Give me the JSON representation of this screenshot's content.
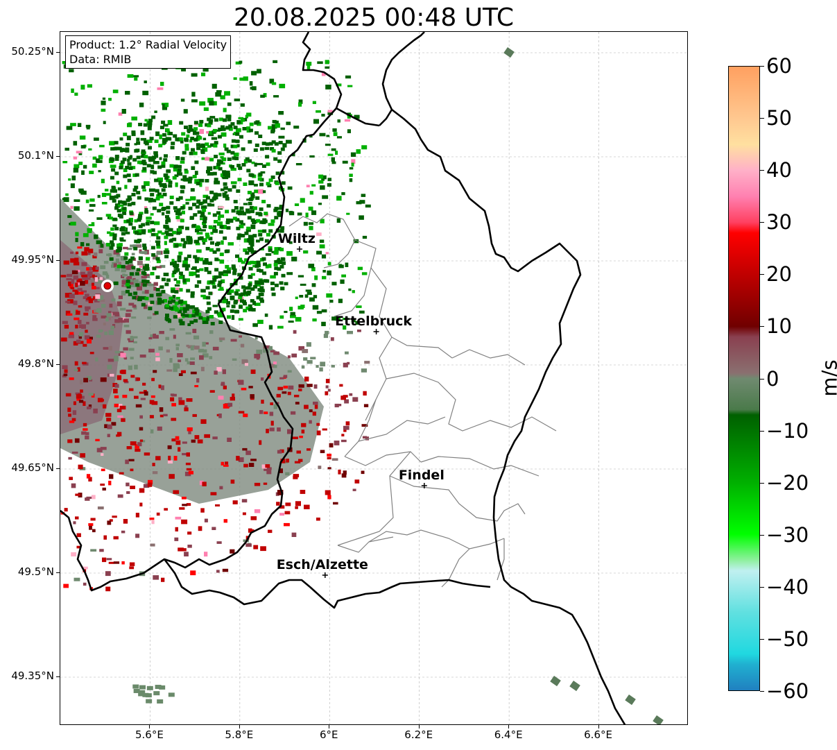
{
  "title": "20.08.2025 00:48 UTC",
  "info": {
    "product": "Product: 1.2° Radial Velocity",
    "source": "Data: RMIB"
  },
  "map": {
    "lon_range": [
      5.4,
      6.8
    ],
    "lat_range": [
      49.28,
      50.28
    ],
    "lat_ticks": [
      {
        "value": 50.25,
        "label": "50.25°N"
      },
      {
        "value": 50.1,
        "label": "50.1°N"
      },
      {
        "value": 49.95,
        "label": "49.95°N"
      },
      {
        "value": 49.8,
        "label": "49.8°N"
      },
      {
        "value": 49.65,
        "label": "49.65°N"
      },
      {
        "value": 49.5,
        "label": "49.5°N"
      },
      {
        "value": 49.35,
        "label": "49.35°N"
      }
    ],
    "lon_ticks": [
      {
        "value": 5.6,
        "label": "5.6°E"
      },
      {
        "value": 5.8,
        "label": "5.8°E"
      },
      {
        "value": 6.0,
        "label": "6°E"
      },
      {
        "value": 6.2,
        "label": "6.2°E"
      },
      {
        "value": 6.4,
        "label": "6.4°E"
      },
      {
        "value": 6.6,
        "label": "6.6°E"
      }
    ],
    "cities": [
      {
        "name": "Wiltz",
        "lon": 5.933,
        "lat": 49.967
      },
      {
        "name": "Ettelbruck",
        "lon": 6.104,
        "lat": 49.848
      },
      {
        "name": "Findel",
        "lon": 6.211,
        "lat": 49.626
      },
      {
        "name": "Esch/Alzette",
        "lon": 5.99,
        "lat": 49.497
      }
    ],
    "radar_site": {
      "lon": 5.505,
      "lat": 49.914
    },
    "colors": {
      "border": "#000000",
      "cantons": "#808080",
      "grid": "#b0b0b0",
      "radar_marker": "#e00000"
    }
  },
  "colorbar": {
    "min": -60,
    "max": 60,
    "unit": "m/s",
    "tick_labels": [
      "60",
      "50",
      "40",
      "30",
      "20",
      "10",
      "0",
      "−10",
      "−20",
      "−30",
      "−40",
      "−50",
      "−60"
    ],
    "tick_values": [
      60,
      50,
      40,
      30,
      20,
      10,
      0,
      -10,
      -20,
      -30,
      -40,
      -50,
      -60
    ],
    "stops": [
      {
        "v": 60,
        "c": "#ffa060"
      },
      {
        "v": 50,
        "c": "#ffc890"
      },
      {
        "v": 45,
        "c": "#ffe0a0"
      },
      {
        "v": 40,
        "c": "#ffb0c8"
      },
      {
        "v": 35,
        "c": "#ff80b0"
      },
      {
        "v": 30,
        "c": "#ff4060"
      },
      {
        "v": 28,
        "c": "#ff0000"
      },
      {
        "v": 20,
        "c": "#c00000"
      },
      {
        "v": 10,
        "c": "#700000"
      },
      {
        "v": 8,
        "c": "#8a4050"
      },
      {
        "v": 1,
        "c": "#8a7070"
      },
      {
        "v": 0,
        "c": "#708a70"
      },
      {
        "v": -6,
        "c": "#4a7a4a"
      },
      {
        "v": -7,
        "c": "#006000"
      },
      {
        "v": -20,
        "c": "#00b000"
      },
      {
        "v": -30,
        "c": "#00ff00"
      },
      {
        "v": -35,
        "c": "#90f0a0"
      },
      {
        "v": -37,
        "c": "#c0f0f0"
      },
      {
        "v": -45,
        "c": "#60e0e0"
      },
      {
        "v": -53,
        "c": "#20d8e0"
      },
      {
        "v": -55,
        "c": "#20b0d0"
      },
      {
        "v": -60,
        "c": "#2080c0"
      }
    ]
  }
}
